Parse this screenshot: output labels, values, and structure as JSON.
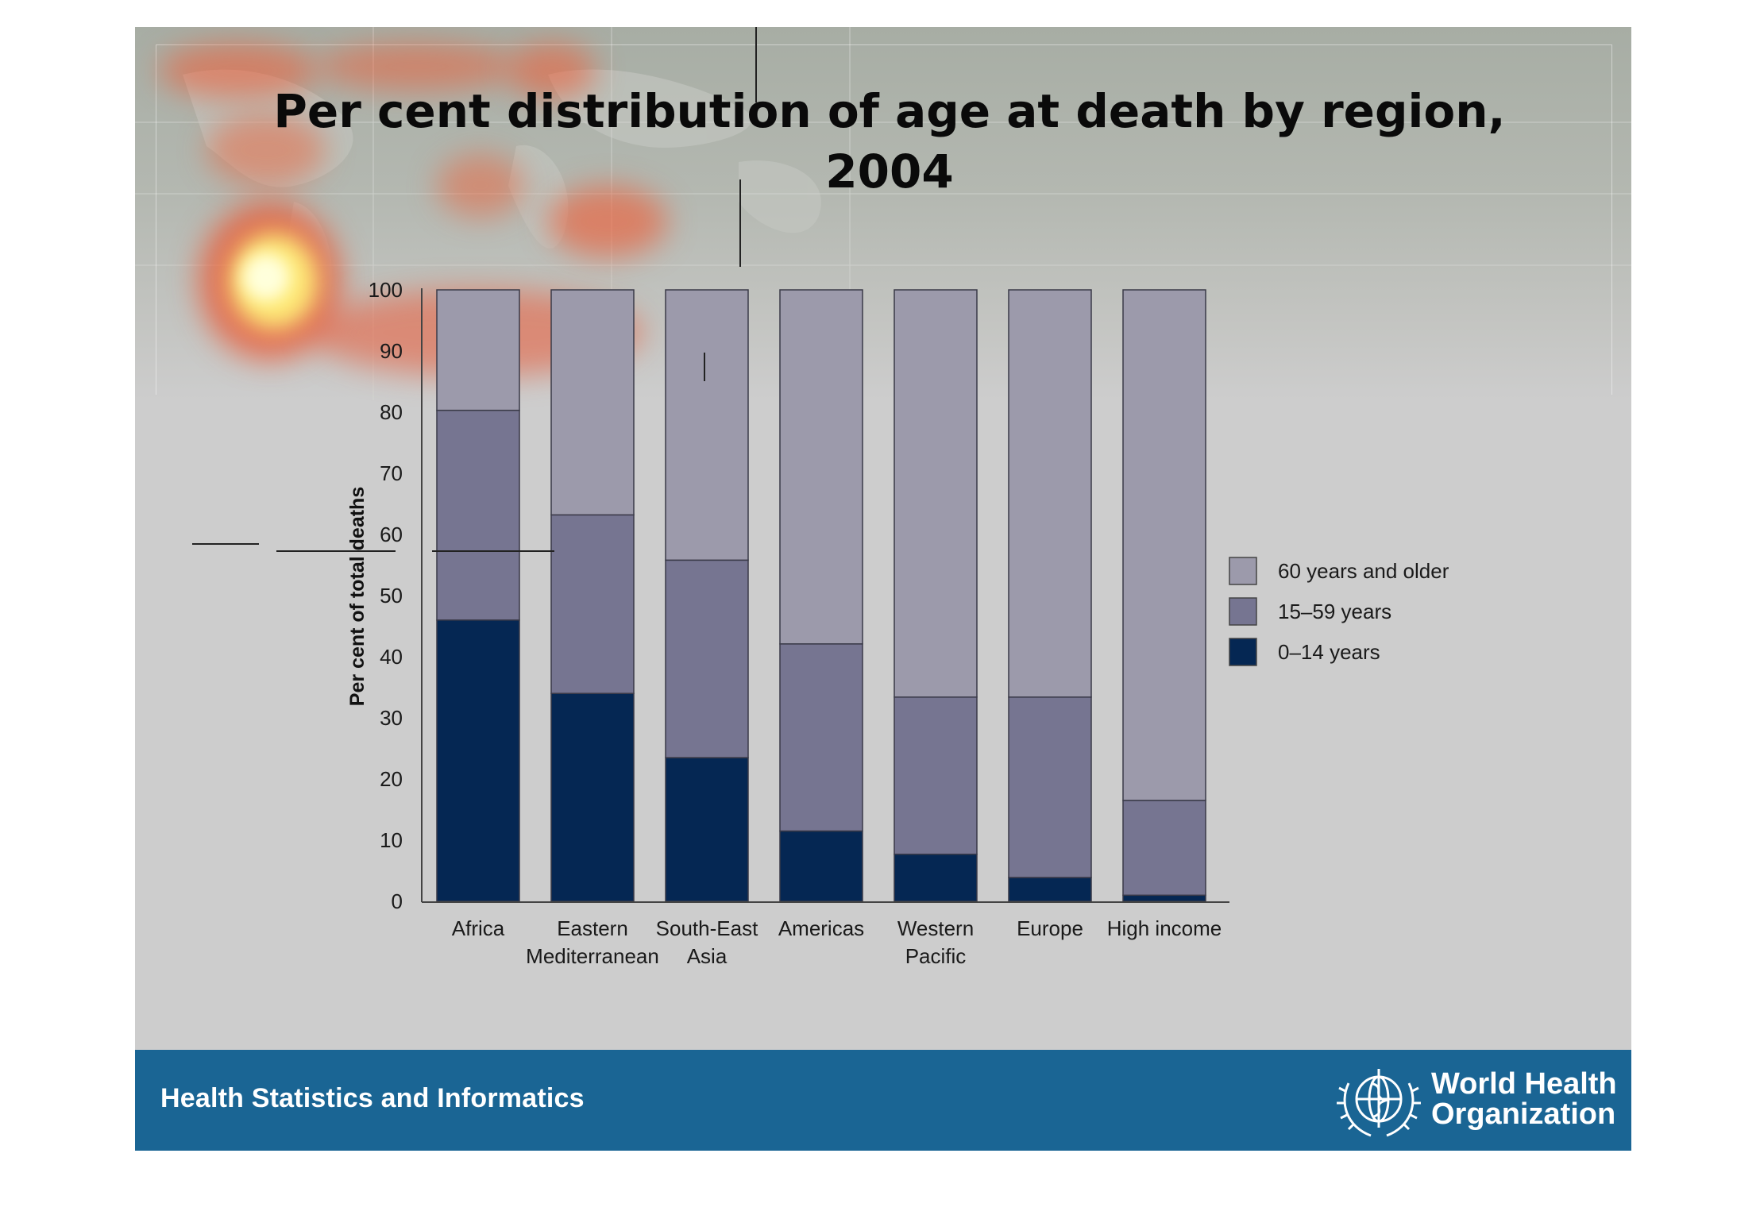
{
  "slide": {
    "title_line1": "Per cent distribution of age at death by region,",
    "title_line2": "2004",
    "footer_text": "Health Statistics and Informatics",
    "org_name_line1": "World Health",
    "org_name_line2": "Organization"
  },
  "colors": {
    "series_60_plus": "#9c9aab",
    "series_15_59": "#767591",
    "series_0_14": "#052753",
    "footer": "#1a6594"
  },
  "chart_data": {
    "type": "bar",
    "stacked": true,
    "title": "Per cent distribution of age at death by region, 2004",
    "ylabel": "Per cent of total deaths",
    "xlabel": "",
    "ylim": [
      0,
      100
    ],
    "yticks": [
      0,
      10,
      20,
      30,
      40,
      50,
      60,
      70,
      80,
      90,
      100
    ],
    "categories": [
      [
        "Africa"
      ],
      [
        "Eastern",
        "Mediterranean"
      ],
      [
        "South-East",
        "Asia"
      ],
      [
        "Americas"
      ],
      [
        "Western",
        "Pacific"
      ],
      [
        "Europe"
      ],
      [
        "High income"
      ]
    ],
    "series": [
      {
        "name": "0–14 years",
        "values": [
          46,
          34,
          23.5,
          11.5,
          7.7,
          3.9,
          1
        ]
      },
      {
        "name": "15–59 years",
        "values": [
          34.3,
          29.2,
          32.3,
          30.6,
          25.7,
          29.5,
          15.5
        ]
      },
      {
        "name": "60 years and older",
        "values": [
          19.7,
          36.8,
          44.2,
          57.9,
          66.6,
          66.6,
          83.5
        ]
      }
    ],
    "legend": {
      "position": "right",
      "entries": [
        "60 years and older",
        "15–59 years",
        "0–14 years"
      ]
    },
    "grid": false
  }
}
